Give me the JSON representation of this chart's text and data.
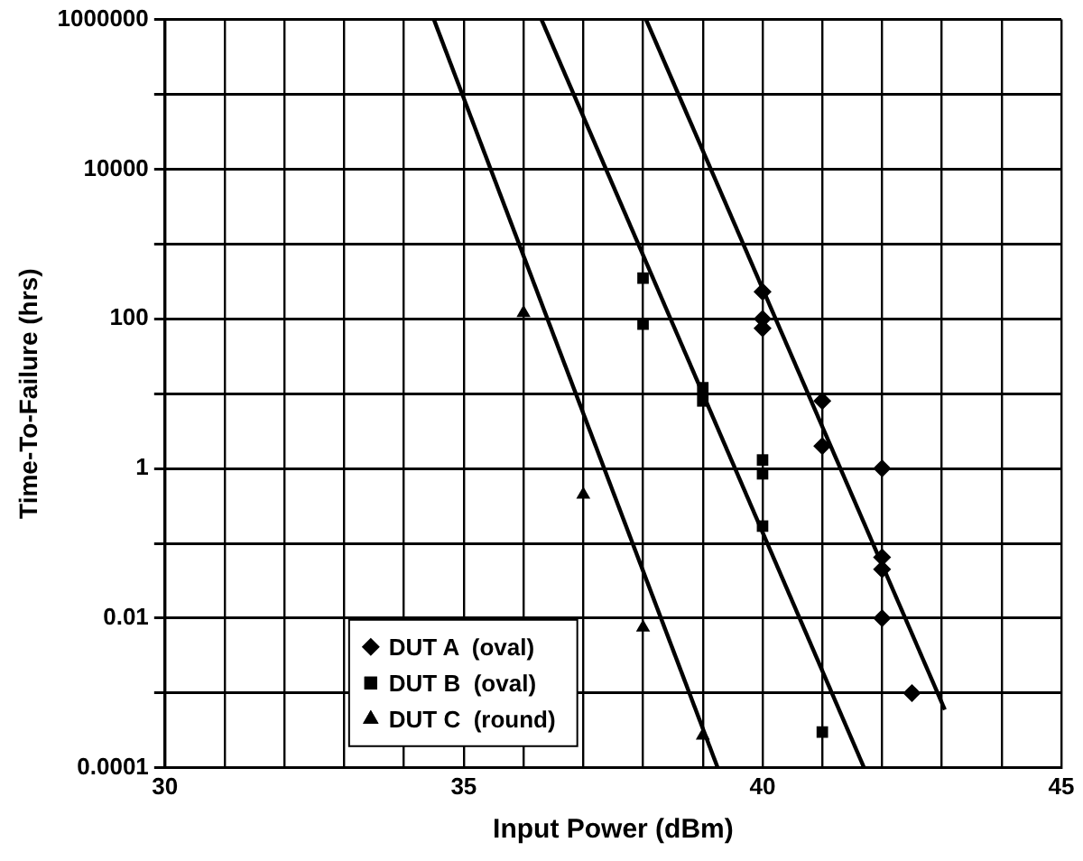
{
  "chart_data": {
    "type": "scatter",
    "xlabel": "Input Power (dBm)",
    "ylabel": "Time-To-Failure (hrs)",
    "log": "y",
    "xlim": [
      30,
      45
    ],
    "ylim": [
      0.0001,
      1000000
    ],
    "xticks": [
      30,
      {
        "value": 31,
        "label": null
      },
      {
        "value": 32,
        "label": null
      },
      {
        "value": 33,
        "label": null
      },
      {
        "value": 34,
        "label": null
      },
      35,
      {
        "value": 36,
        "label": null
      },
      {
        "value": 37,
        "label": null
      },
      {
        "value": 38,
        "label": null
      },
      {
        "value": 39,
        "label": null
      },
      40,
      {
        "value": 41,
        "label": null
      },
      {
        "value": 42,
        "label": null
      },
      {
        "value": 43,
        "label": null
      },
      {
        "value": 44,
        "label": null
      },
      45
    ],
    "yticks": [
      0.0001,
      {
        "value": 0.001,
        "label": null
      },
      0.01,
      {
        "value": 0.1,
        "label": null
      },
      1,
      {
        "value": 10,
        "label": null
      },
      100,
      {
        "value": 1000,
        "label": null
      },
      10000,
      {
        "value": 100000,
        "label": null
      },
      1000000
    ],
    "grid": true,
    "legend": "bottom left",
    "series": [
      {
        "name": "DUT A  (oval)",
        "color": "#000000",
        "marker": "diamond",
        "x": [
          40,
          40,
          40,
          41,
          41,
          42,
          42,
          42,
          42,
          42.5
        ],
        "values": [
          230,
          100,
          75,
          8,
          2,
          1,
          0.065,
          0.045,
          0.01,
          0.001
        ]
      },
      {
        "name": "DUT B  (oval)",
        "color": "#000000",
        "marker": "square",
        "x": [
          38,
          38,
          39,
          39,
          40,
          40,
          40,
          41
        ],
        "values": [
          350,
          85,
          12,
          8,
          1.3,
          0.85,
          0.17,
          0.0003
        ]
      },
      {
        "name": "DUT C  (round)",
        "color": "#000000",
        "marker": "triangle",
        "x": [
          36,
          37,
          38,
          39
        ],
        "values": [
          120,
          0.45,
          0.0075,
          0.00027
        ]
      },
      {
        "type": "line",
        "color": "#000000",
        "marker": "none",
        "x": [
          38.05,
          43.05
        ],
        "values": [
          1000000,
          0.0006
        ]
      },
      {
        "type": "line",
        "color": "#000000",
        "marker": "none",
        "x": [
          36.3,
          41.7
        ],
        "values": [
          1000000,
          0.0001
        ]
      },
      {
        "type": "line",
        "color": "#000000",
        "marker": "none",
        "x": [
          34.5,
          39.25
        ],
        "values": [
          1000000,
          0.0001
        ]
      }
    ]
  }
}
